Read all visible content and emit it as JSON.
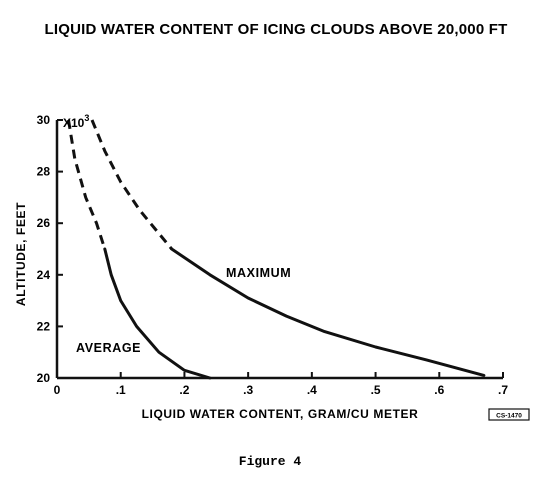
{
  "chart_data": {
    "type": "line",
    "title": "LIQUID WATER CONTENT OF ICING CLOUDS ABOVE 20,000 FT",
    "xlabel": "LIQUID WATER CONTENT, GRAM/CU METER",
    "ylabel": "ALTITUDE, FEET",
    "y_multiplier": "X10",
    "y_multiplier_exp": "3",
    "xlim": [
      0,
      0.7
    ],
    "ylim": [
      20,
      30
    ],
    "xticks": [
      {
        "value": 0,
        "label": "0"
      },
      {
        "value": 0.1,
        "label": ".1"
      },
      {
        "value": 0.2,
        "label": ".2"
      },
      {
        "value": 0.3,
        "label": ".3"
      },
      {
        "value": 0.4,
        "label": ".4"
      },
      {
        "value": 0.5,
        "label": ".5"
      },
      {
        "value": 0.6,
        "label": ".6"
      },
      {
        "value": 0.7,
        "label": ".7"
      }
    ],
    "yticks": [
      {
        "value": 20,
        "label": "20"
      },
      {
        "value": 22,
        "label": "22"
      },
      {
        "value": 24,
        "label": "24"
      },
      {
        "value": 26,
        "label": "26"
      },
      {
        "value": 28,
        "label": "28"
      },
      {
        "value": 30,
        "label": "30"
      }
    ],
    "grid": false,
    "series": [
      {
        "name": "AVERAGE",
        "dashed": [
          [
            0.018,
            30.0
          ],
          [
            0.028,
            28.5
          ],
          [
            0.045,
            27.0
          ],
          [
            0.062,
            26.0
          ],
          [
            0.075,
            25.0
          ]
        ],
        "solid": [
          [
            0.075,
            25.0
          ],
          [
            0.085,
            24.0
          ],
          [
            0.1,
            23.0
          ],
          [
            0.125,
            22.0
          ],
          [
            0.16,
            21.0
          ],
          [
            0.2,
            20.3
          ],
          [
            0.24,
            20.0
          ]
        ]
      },
      {
        "name": "MAXIMUM",
        "dashed": [
          [
            0.055,
            30.0
          ],
          [
            0.075,
            28.8
          ],
          [
            0.1,
            27.6
          ],
          [
            0.13,
            26.5
          ],
          [
            0.16,
            25.6
          ],
          [
            0.18,
            25.0
          ]
        ],
        "solid": [
          [
            0.18,
            25.0
          ],
          [
            0.24,
            24.0
          ],
          [
            0.3,
            23.1
          ],
          [
            0.36,
            22.4
          ],
          [
            0.42,
            21.8
          ],
          [
            0.5,
            21.2
          ],
          [
            0.58,
            20.7
          ],
          [
            0.67,
            20.1
          ]
        ]
      }
    ]
  },
  "figure_caption": "Figure 4",
  "image_code": "CS-1470"
}
